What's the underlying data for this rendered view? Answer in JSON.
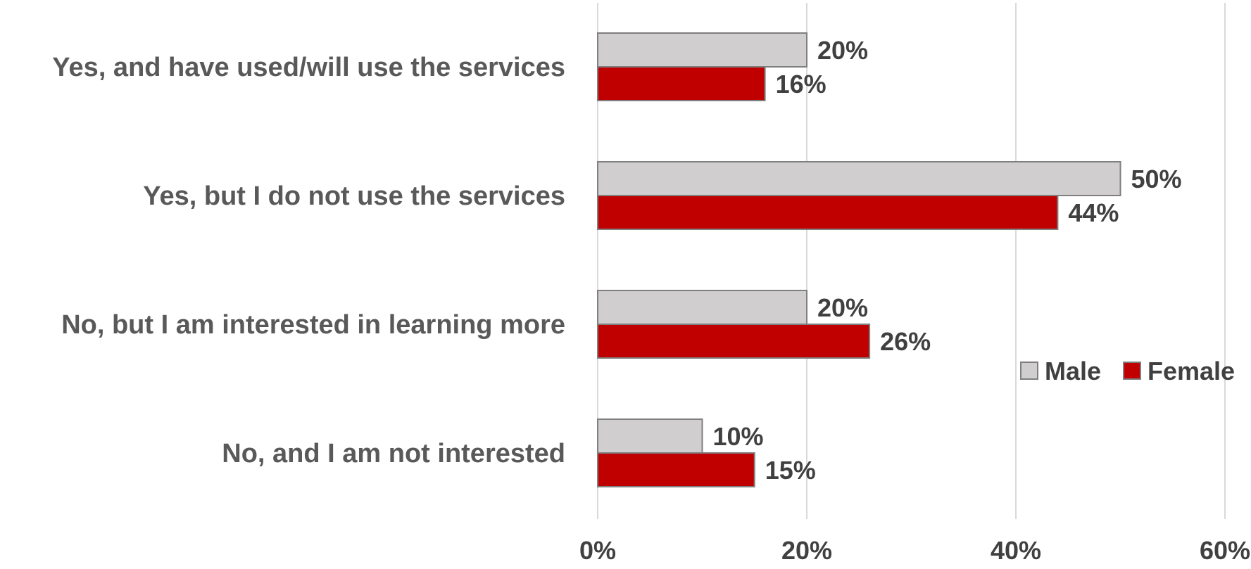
{
  "chart_data": {
    "type": "bar",
    "orientation": "horizontal",
    "categories": [
      "Yes, and have used/will use the services",
      "Yes, but I do not use the services",
      "No, but I am interested in learning more",
      "No, and I am not interested"
    ],
    "series": [
      {
        "name": "Male",
        "values": [
          20,
          50,
          20,
          10
        ],
        "labels": [
          "20%",
          "50%",
          "20%",
          "10%"
        ],
        "color": "#d0cecf"
      },
      {
        "name": "Female",
        "values": [
          16,
          44,
          26,
          15
        ],
        "labels": [
          "16%",
          "44%",
          "26%",
          "15%"
        ],
        "color": "#c00000"
      }
    ],
    "xlim": [
      0,
      60
    ],
    "xticks": [
      0,
      20,
      40,
      60
    ],
    "xtick_labels": [
      "0%",
      "20%",
      "40%",
      "60%"
    ],
    "grid": true,
    "legend_position": "right"
  }
}
